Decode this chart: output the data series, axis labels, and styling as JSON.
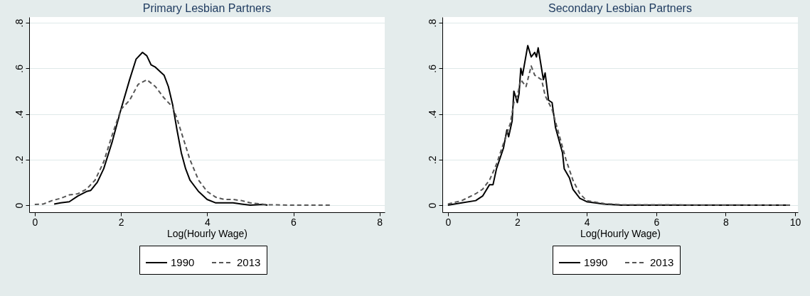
{
  "chart_data": [
    {
      "type": "line",
      "title": "Primary Lesbian Partners",
      "xlabel": "Log(Hourly Wage)",
      "xlim": [
        -0.13,
        8.12
      ],
      "xticks": [
        0,
        2,
        4,
        6,
        8
      ],
      "ylim": [
        -0.031,
        0.825
      ],
      "yticks": [
        0,
        {
          "value": 0.2,
          "label": ".2"
        },
        {
          "value": 0.4,
          "label": ".4"
        },
        {
          "value": 0.6,
          "label": ".6"
        },
        {
          "value": 0.8,
          "label": ".8"
        }
      ],
      "grid": "y",
      "legend": "bottom",
      "marker": "none",
      "series": [
        {
          "name": "1990",
          "color": "#000000",
          "line_style": "solid",
          "x": [
            0.45,
            0.6,
            0.8,
            1.0,
            1.2,
            1.3,
            1.45,
            1.6,
            1.8,
            2.0,
            2.2,
            2.35,
            2.5,
            2.6,
            2.7,
            2.8,
            3.0,
            3.1,
            3.2,
            3.3,
            3.4,
            3.5,
            3.6,
            3.8,
            4.0,
            4.2,
            4.6,
            4.8,
            5.0,
            5.3,
            5.4
          ],
          "values": [
            0.005,
            0.01,
            0.015,
            0.04,
            0.06,
            0.065,
            0.1,
            0.16,
            0.28,
            0.42,
            0.55,
            0.64,
            0.67,
            0.655,
            0.615,
            0.605,
            0.57,
            0.52,
            0.44,
            0.33,
            0.23,
            0.16,
            0.11,
            0.06,
            0.025,
            0.01,
            0.01,
            0.005,
            0.0,
            0.003,
            0.0
          ]
        },
        {
          "name": "2013",
          "color": "#555555",
          "line_style": "dashed",
          "x": [
            0,
            0.2,
            0.4,
            0.6,
            0.8,
            1.0,
            1.2,
            1.4,
            1.6,
            1.8,
            2.0,
            2.2,
            2.4,
            2.6,
            2.8,
            3.0,
            3.2,
            3.3,
            3.4,
            3.6,
            3.8,
            4.0,
            4.2,
            4.4,
            4.6,
            4.8,
            5.0,
            5.4,
            6.0,
            6.85
          ],
          "values": [
            0.003,
            0.005,
            0.02,
            0.03,
            0.045,
            0.05,
            0.07,
            0.11,
            0.19,
            0.31,
            0.42,
            0.46,
            0.53,
            0.55,
            0.52,
            0.47,
            0.43,
            0.38,
            0.32,
            0.2,
            0.11,
            0.06,
            0.035,
            0.025,
            0.025,
            0.02,
            0.01,
            0.002,
            0.0,
            0.0
          ]
        }
      ]
    },
    {
      "type": "line",
      "title": "Secondary Lesbian Partners",
      "xlabel": "Log(Hourly Wage)",
      "xlim": [
        -0.16,
        10.08
      ],
      "xticks": [
        0,
        2,
        4,
        6,
        8,
        10
      ],
      "ylim": [
        -0.031,
        0.825
      ],
      "yticks": [
        0,
        {
          "value": 0.2,
          "label": ".2"
        },
        {
          "value": 0.4,
          "label": ".4"
        },
        {
          "value": 0.6,
          "label": ".6"
        },
        {
          "value": 0.8,
          "label": ".8"
        }
      ],
      "grid": "y",
      "legend": "bottom",
      "marker": "none",
      "series": [
        {
          "name": "1990",
          "color": "#000000",
          "line_style": "solid",
          "x": [
            0,
            0.4,
            0.8,
            1.0,
            1.2,
            1.3,
            1.4,
            1.6,
            1.7,
            1.75,
            1.85,
            1.9,
            2.0,
            2.05,
            2.1,
            2.15,
            2.3,
            2.4,
            2.5,
            2.55,
            2.6,
            2.75,
            2.8,
            2.9,
            3.0,
            3.1,
            3.3,
            3.35,
            3.5,
            3.6,
            3.8,
            4.0,
            4.5,
            5.0,
            9.85
          ],
          "values": [
            0,
            0.01,
            0.02,
            0.04,
            0.09,
            0.09,
            0.16,
            0.25,
            0.33,
            0.3,
            0.37,
            0.5,
            0.45,
            0.49,
            0.6,
            0.57,
            0.7,
            0.65,
            0.67,
            0.65,
            0.69,
            0.55,
            0.58,
            0.46,
            0.45,
            0.34,
            0.23,
            0.16,
            0.12,
            0.07,
            0.03,
            0.015,
            0.005,
            0,
            0
          ]
        },
        {
          "name": "2013",
          "color": "#555555",
          "line_style": "dashed",
          "x": [
            0,
            0.4,
            0.8,
            1.0,
            1.2,
            1.4,
            1.6,
            1.8,
            1.9,
            2.0,
            2.1,
            2.25,
            2.4,
            2.5,
            2.7,
            2.8,
            3.0,
            3.2,
            3.4,
            3.6,
            3.8,
            4.0,
            4.5,
            5.0,
            9.85
          ],
          "values": [
            0.005,
            0.02,
            0.05,
            0.07,
            0.11,
            0.18,
            0.27,
            0.36,
            0.45,
            0.48,
            0.55,
            0.52,
            0.61,
            0.57,
            0.55,
            0.48,
            0.42,
            0.31,
            0.2,
            0.11,
            0.05,
            0.02,
            0.007,
            0.002,
            0
          ]
        }
      ]
    }
  ]
}
